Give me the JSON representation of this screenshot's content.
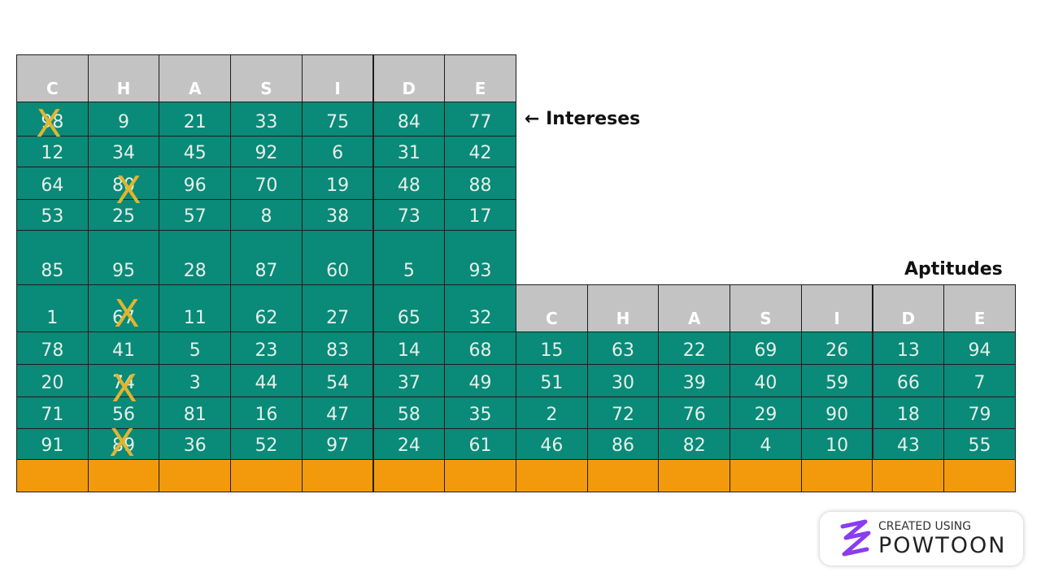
{
  "interests": {
    "label": "← Intereses",
    "headers": [
      "C",
      "H",
      "A",
      "S",
      "I",
      "D",
      "E"
    ],
    "rows": [
      [
        98,
        9,
        21,
        33,
        75,
        84,
        77
      ],
      [
        12,
        34,
        45,
        92,
        6,
        31,
        42
      ],
      [
        64,
        80,
        96,
        70,
        19,
        48,
        88
      ],
      [
        53,
        25,
        57,
        8,
        38,
        73,
        17
      ],
      [
        85,
        95,
        28,
        87,
        60,
        5,
        93
      ],
      [
        1,
        67,
        11,
        62,
        27,
        65,
        32
      ],
      [
        78,
        41,
        5,
        23,
        83,
        14,
        68
      ],
      [
        20,
        74,
        3,
        44,
        54,
        37,
        49
      ],
      [
        71,
        56,
        81,
        16,
        47,
        58,
        35
      ],
      [
        91,
        89,
        36,
        52,
        97,
        24,
        61
      ]
    ]
  },
  "aptitudes": {
    "label": "Aptitudes",
    "headers": [
      "C",
      "H",
      "A",
      "S",
      "I",
      "D",
      "E"
    ],
    "rows": [
      [
        15,
        63,
        22,
        69,
        26,
        13,
        94
      ],
      [
        51,
        30,
        39,
        40,
        59,
        66,
        7
      ],
      [
        2,
        72,
        76,
        29,
        90,
        18,
        79
      ],
      [
        46,
        86,
        82,
        4,
        10,
        43,
        55
      ]
    ]
  },
  "cross_mark": "X",
  "logo": {
    "caption": "CREATED USING",
    "brand": "POWTOON"
  }
}
